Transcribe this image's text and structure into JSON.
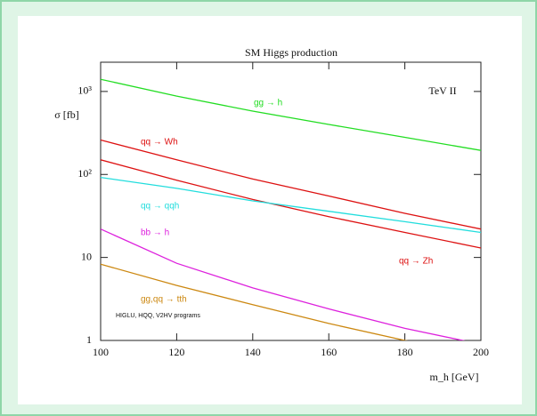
{
  "chart_data": {
    "type": "line",
    "title": "SM Higgs production",
    "annotation": "TeV II",
    "note": "HIGLU, HQQ, V2HV programs",
    "xlabel": "m_h [GeV]",
    "ylabel": "σ [fb]",
    "log_y": true,
    "x": [
      100,
      120,
      140,
      160,
      180,
      200
    ],
    "xlim": [
      100,
      200
    ],
    "xticks": [
      100,
      120,
      140,
      160,
      180,
      200
    ],
    "ylim": [
      1,
      2250
    ],
    "yticks": [
      1,
      10,
      {
        "value": 100,
        "label": "10²"
      },
      {
        "value": 1000,
        "label": "10³"
      }
    ],
    "series": [
      {
        "name": "gg → h",
        "color": "#22dd22",
        "values": [
          1400,
          880,
          580,
          400,
          280,
          195
        ]
      },
      {
        "name": "qq → Wh",
        "color": "#dd1111",
        "values": [
          260,
          150,
          88,
          55,
          34,
          22
        ]
      },
      {
        "name": "qq → Zh",
        "color": "#dd1111",
        "values": [
          150,
          85,
          50,
          31,
          20,
          13
        ]
      },
      {
        "name": "qq → qqh",
        "color": "#22dddd",
        "values": [
          92,
          68,
          48,
          36,
          27,
          20
        ]
      },
      {
        "name": "bb → h",
        "color": "#dd22dd",
        "values": [
          22,
          8.5,
          4.3,
          2.4,
          1.4,
          0.9
        ]
      },
      {
        "name": "gg,qq → tth",
        "color": "#cc8811",
        "values": [
          8.3,
          4.6,
          2.7,
          1.6,
          1.0,
          0.7
        ]
      }
    ]
  }
}
